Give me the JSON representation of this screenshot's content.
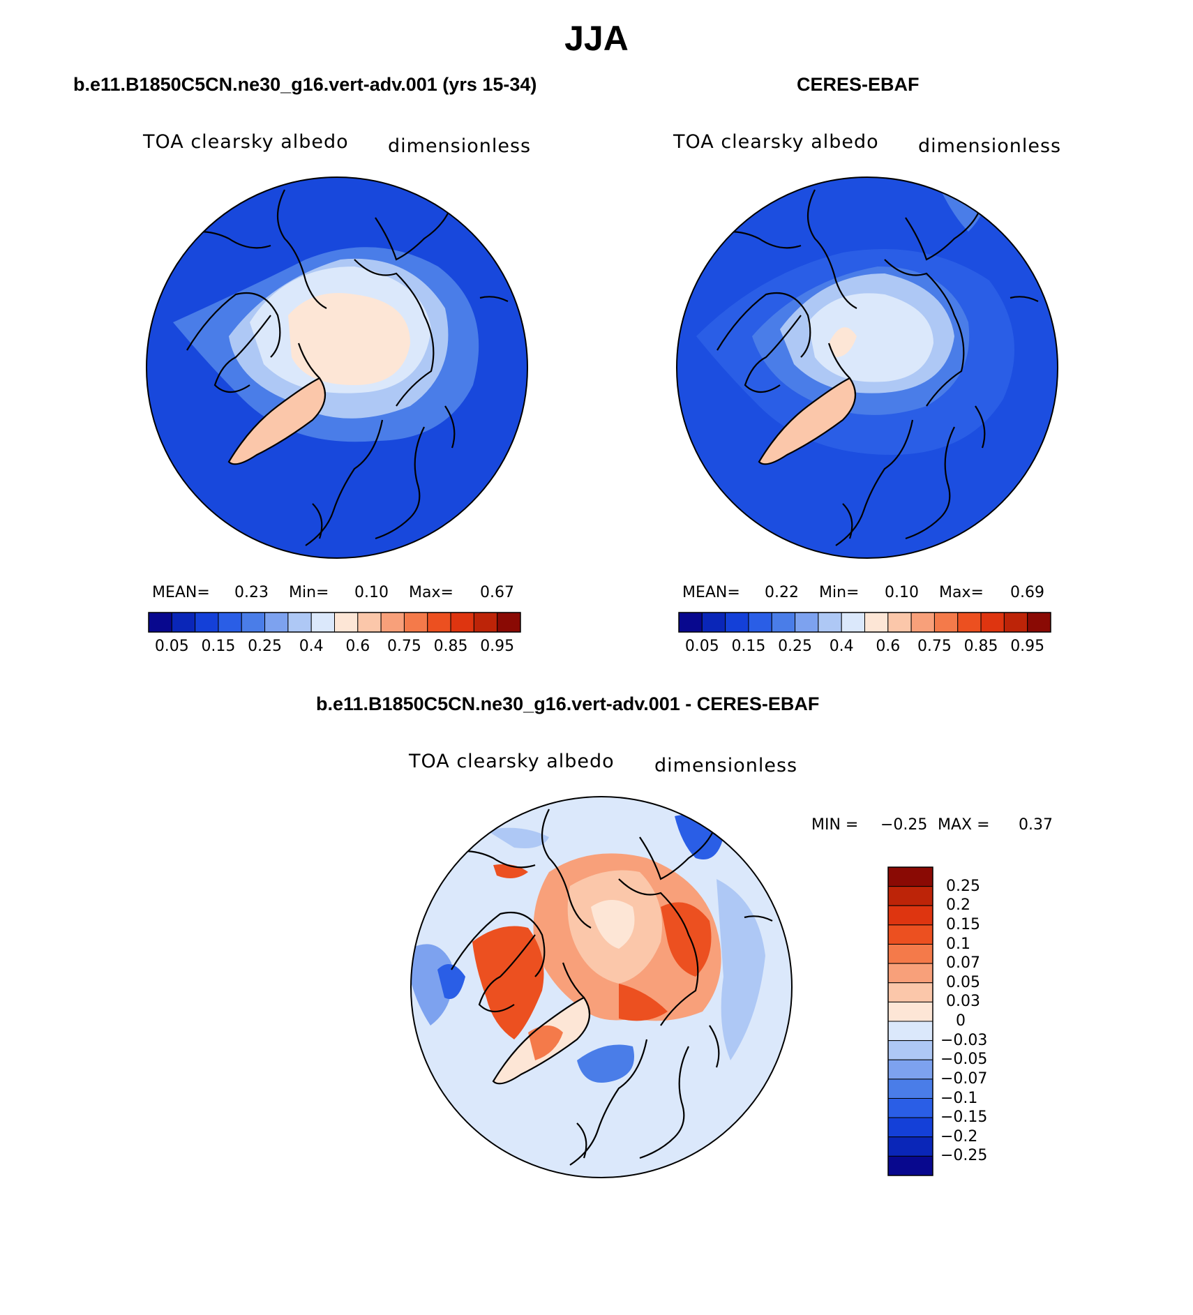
{
  "season": "JJA",
  "panels": [
    {
      "title": "b.e11.B1850C5CN.ne30_g16.vert-adv.001 (yrs 15-34)",
      "variable": "TOA clearsky albedo",
      "units": "dimensionless",
      "stats": {
        "mean_label": "MEAN=",
        "mean": "0.23",
        "min_label": "Min=",
        "min": "0.10",
        "max_label": "Max=",
        "max": "0.67"
      }
    },
    {
      "title": "CERES-EBAF",
      "variable": "TOA clearsky albedo",
      "units": "dimensionless",
      "stats": {
        "mean_label": "MEAN=",
        "mean": "0.22",
        "min_label": "Min=",
        "min": "0.10",
        "max_label": "Max=",
        "max": "0.69"
      }
    }
  ],
  "diff_panel": {
    "title": "b.e11.B1850C5CN.ne30_g16.vert-adv.001 - CERES-EBAF",
    "variable": "TOA clearsky albedo",
    "units": "dimensionless",
    "stats": {
      "min_label": "MIN =",
      "min": "−0.25",
      "max_label": "MAX =",
      "max": "0.37"
    }
  },
  "colorbar_abs": {
    "colors": [
      "#08088e",
      "#0a26b8",
      "#1440d8",
      "#2a5ee6",
      "#4a7de8",
      "#7da2ef",
      "#aec8f5",
      "#dbe8fb",
      "#fde6d6",
      "#fbc7aa",
      "#f8a07a",
      "#f47a4a",
      "#ec5020",
      "#de3510",
      "#bd2408",
      "#8a0a04"
    ],
    "tick_labels": [
      "0.05",
      "0.15",
      "0.25",
      "0.4",
      "0.6",
      "0.75",
      "0.85",
      "0.95"
    ]
  },
  "colorbar_diff": {
    "colors": [
      "#8a0a04",
      "#bd2408",
      "#de3510",
      "#ec5020",
      "#f47a4a",
      "#f8a07a",
      "#fbc7aa",
      "#fde6d6",
      "#dbe8fb",
      "#aec8f5",
      "#7da2ef",
      "#4a7de8",
      "#2a5ee6",
      "#1440d8",
      "#0a26b8",
      "#08088e"
    ],
    "tick_labels": [
      "0.25",
      "0.2",
      "0.15",
      "0.1",
      "0.07",
      "0.05",
      "0.03",
      "0",
      "−0.03",
      "−0.05",
      "−0.07",
      "−0.1",
      "−0.15",
      "−0.2",
      "−0.25"
    ]
  }
}
